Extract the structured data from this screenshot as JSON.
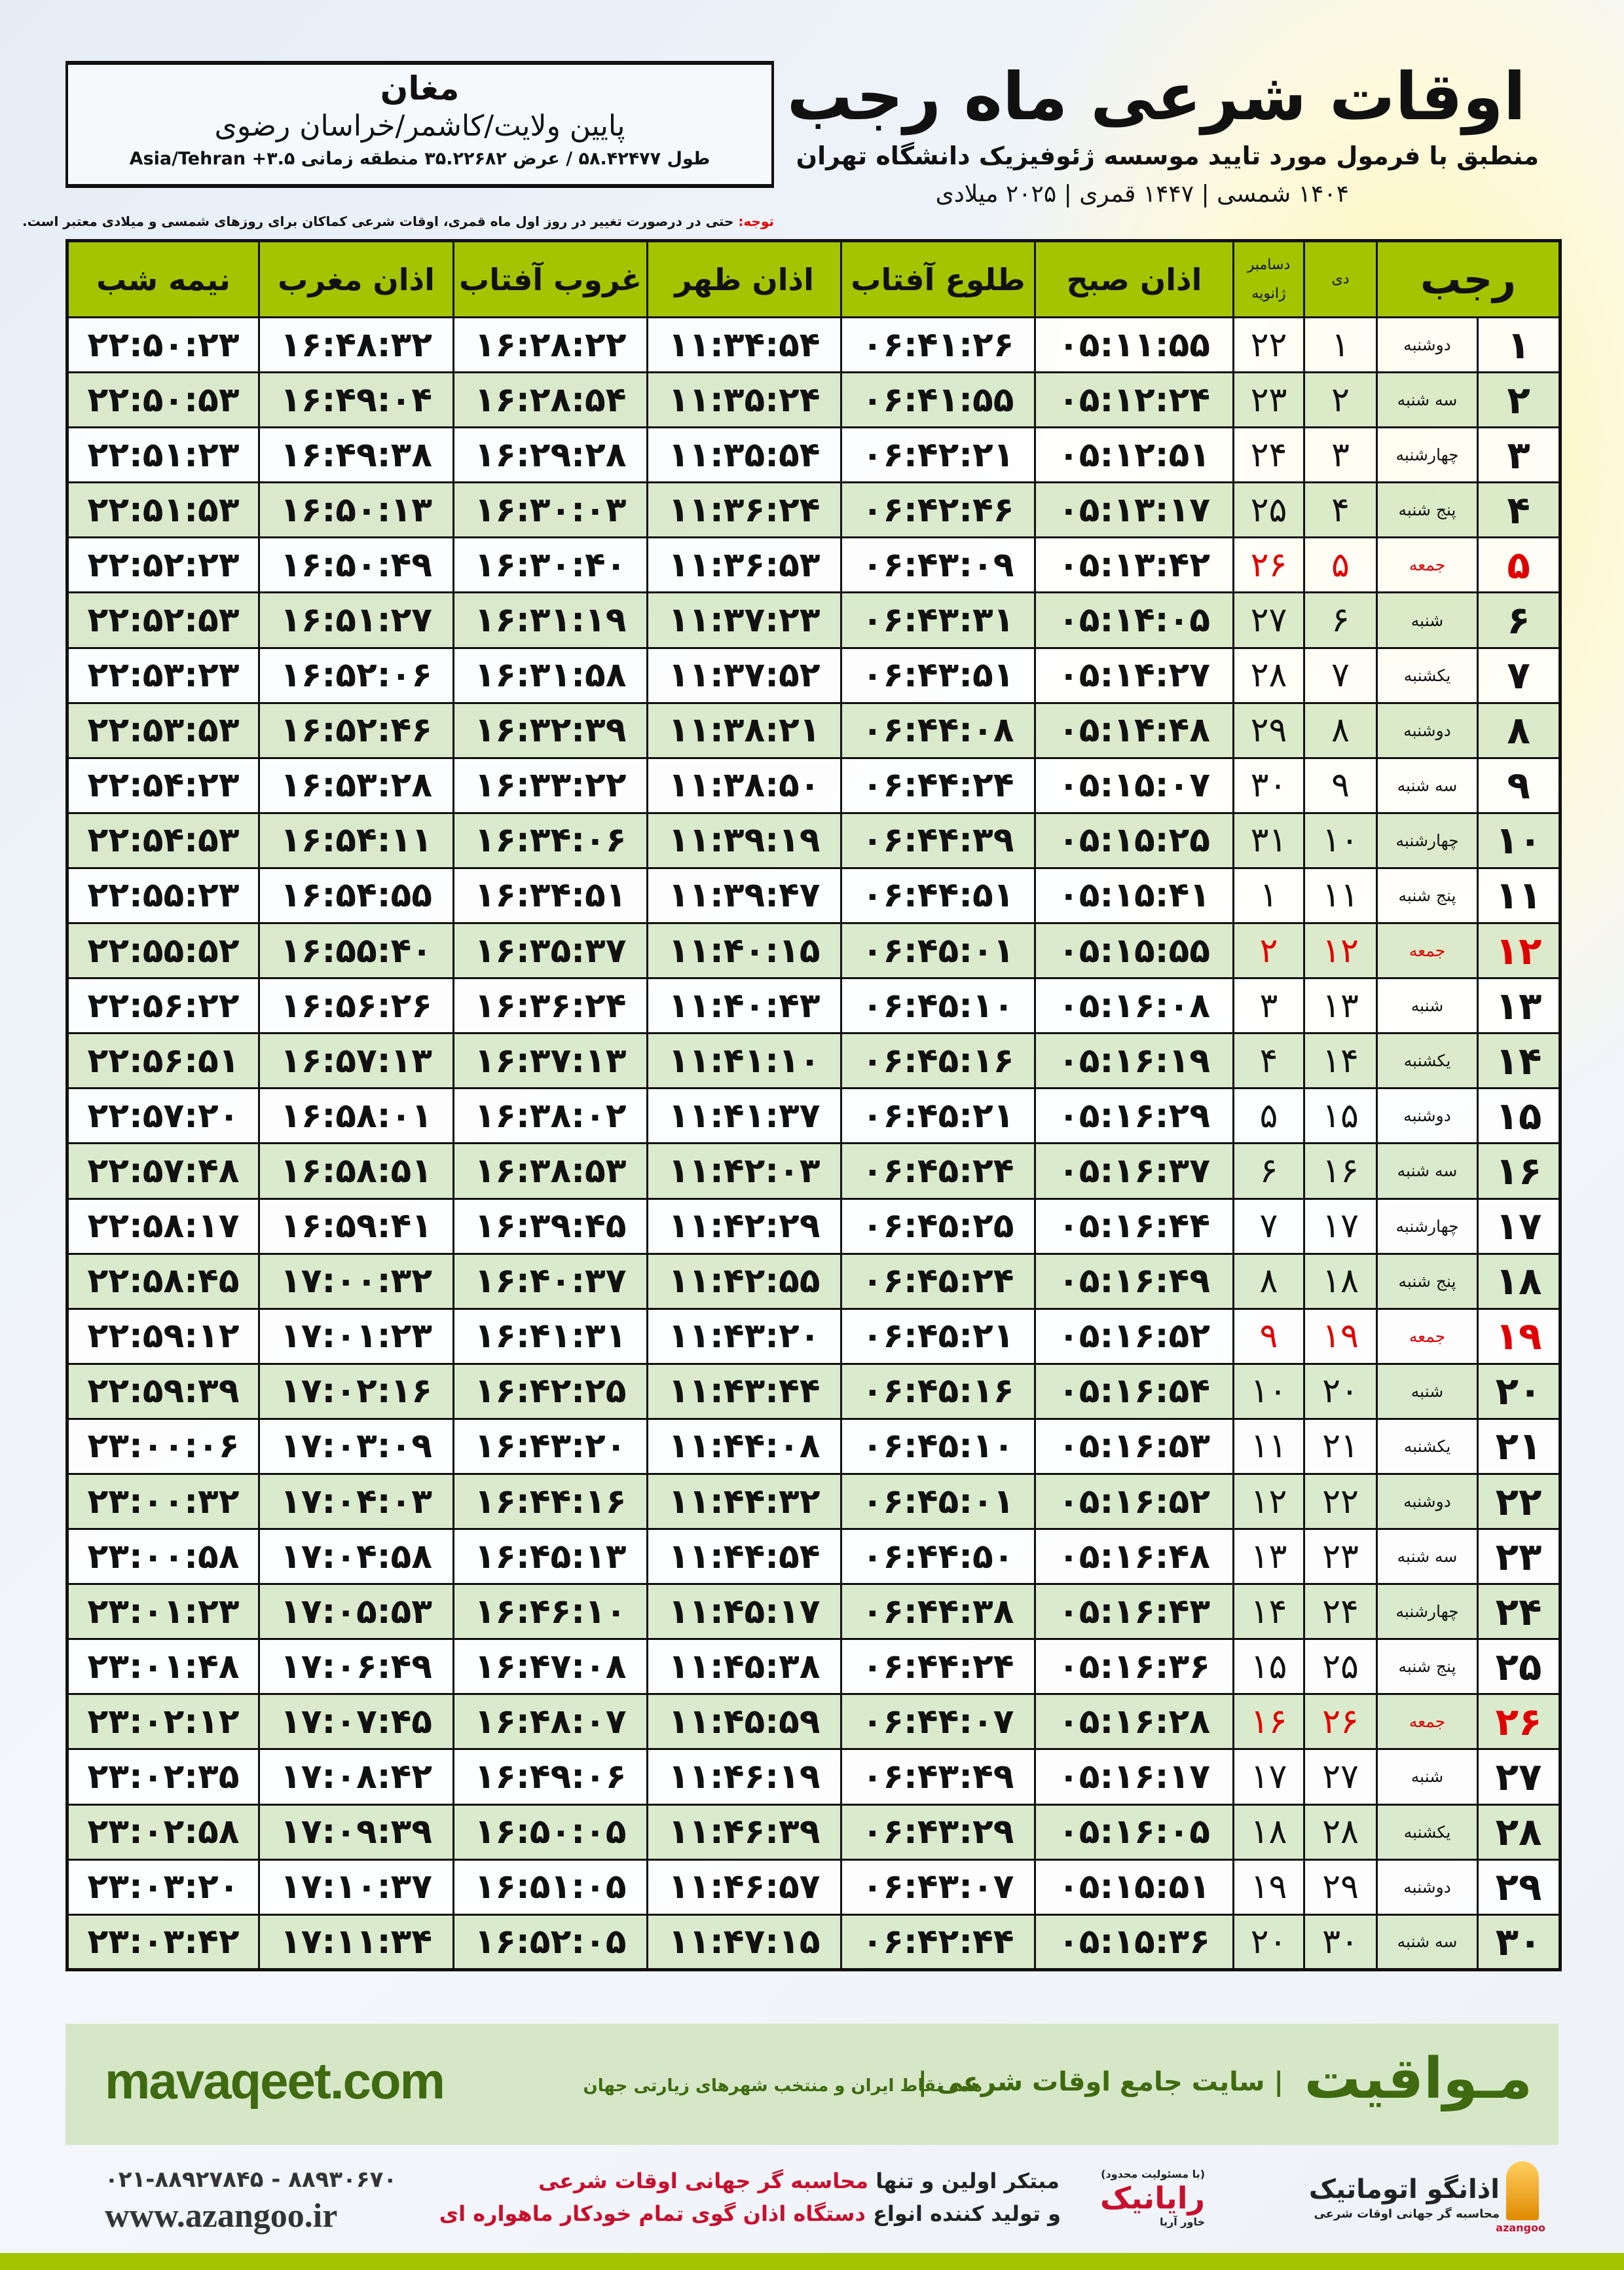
{
  "header": {
    "title": "اوقات شرعی ماه رجب",
    "subtitle": "منطبق با فرمول مورد تایید موسسه ژئوفیزیک دانشگاه تهران",
    "dates": "۱۴۰۴ شمسی | ۱۴۴۷ قمری | ۲۰۲۵ میلادی"
  },
  "location": {
    "city": "مغان",
    "province": "پایین ولایت/کاشمر/خراسان رضوی",
    "coords": "طول ۵۸.۴۲۴۷۷ / عرض ۳۵.۲۲۶۸۲ منطقه زمانی ۳.۵+ Asia/Tehran"
  },
  "note": {
    "label": "توجه:",
    "text": " حتی در درصورت تغییر در روز اول ماه قمری، اوقات شرعی کماکان برای روزهای شمسی و میلادی معتبر است."
  },
  "table": {
    "headers": {
      "rajab": "رجب",
      "dey": "دی",
      "gregorian_top": "دسامبر",
      "gregorian_bottom": "ژانویه",
      "fajr": "اذان صبح",
      "sunrise": "طلوع آفتاب",
      "dhuhr": "اذان ظهر",
      "sunset": "غروب آفتاب",
      "maghrib": "اذان مغرب",
      "midnight": "نیمه شب"
    },
    "friday_color": "#e00000",
    "header_color": "#a5c400",
    "rows": [
      [
        "۱",
        "دوشنبه",
        "۱",
        "۲۲",
        "۰۵:۱۱:۵۵",
        "۰۶:۴۱:۲۶",
        "۱۱:۳۴:۵۴",
        "۱۶:۲۸:۲۲",
        "۱۶:۴۸:۳۲",
        "۲۲:۵۰:۲۳"
      ],
      [
        "۲",
        "سه شنبه",
        "۲",
        "۲۳",
        "۰۵:۱۲:۲۴",
        "۰۶:۴۱:۵۵",
        "۱۱:۳۵:۲۴",
        "۱۶:۲۸:۵۴",
        "۱۶:۴۹:۰۴",
        "۲۲:۵۰:۵۳"
      ],
      [
        "۳",
        "چهارشنبه",
        "۳",
        "۲۴",
        "۰۵:۱۲:۵۱",
        "۰۶:۴۲:۲۱",
        "۱۱:۳۵:۵۴",
        "۱۶:۲۹:۲۸",
        "۱۶:۴۹:۳۸",
        "۲۲:۵۱:۲۳"
      ],
      [
        "۴",
        "پنج شنبه",
        "۴",
        "۲۵",
        "۰۵:۱۳:۱۷",
        "۰۶:۴۲:۴۶",
        "۱۱:۳۶:۲۴",
        "۱۶:۳۰:۰۳",
        "۱۶:۵۰:۱۳",
        "۲۲:۵۱:۵۳"
      ],
      [
        "۵",
        "جمعه",
        "۵",
        "۲۶",
        "۰۵:۱۳:۴۲",
        "۰۶:۴۳:۰۹",
        "۱۱:۳۶:۵۳",
        "۱۶:۳۰:۴۰",
        "۱۶:۵۰:۴۹",
        "۲۲:۵۲:۲۳"
      ],
      [
        "۶",
        "شنبه",
        "۶",
        "۲۷",
        "۰۵:۱۴:۰۵",
        "۰۶:۴۳:۳۱",
        "۱۱:۳۷:۲۳",
        "۱۶:۳۱:۱۹",
        "۱۶:۵۱:۲۷",
        "۲۲:۵۲:۵۳"
      ],
      [
        "۷",
        "یکشنبه",
        "۷",
        "۲۸",
        "۰۵:۱۴:۲۷",
        "۰۶:۴۳:۵۱",
        "۱۱:۳۷:۵۲",
        "۱۶:۳۱:۵۸",
        "۱۶:۵۲:۰۶",
        "۲۲:۵۳:۲۳"
      ],
      [
        "۸",
        "دوشنبه",
        "۸",
        "۲۹",
        "۰۵:۱۴:۴۸",
        "۰۶:۴۴:۰۸",
        "۱۱:۳۸:۲۱",
        "۱۶:۳۲:۳۹",
        "۱۶:۵۲:۴۶",
        "۲۲:۵۳:۵۳"
      ],
      [
        "۹",
        "سه شنبه",
        "۹",
        "۳۰",
        "۰۵:۱۵:۰۷",
        "۰۶:۴۴:۲۴",
        "۱۱:۳۸:۵۰",
        "۱۶:۳۳:۲۲",
        "۱۶:۵۳:۲۸",
        "۲۲:۵۴:۲۳"
      ],
      [
        "۱۰",
        "چهارشنبه",
        "۱۰",
        "۳۱",
        "۰۵:۱۵:۲۵",
        "۰۶:۴۴:۳۹",
        "۱۱:۳۹:۱۹",
        "۱۶:۳۴:۰۶",
        "۱۶:۵۴:۱۱",
        "۲۲:۵۴:۵۳"
      ],
      [
        "۱۱",
        "پنج شنبه",
        "۱۱",
        "۱",
        "۰۵:۱۵:۴۱",
        "۰۶:۴۴:۵۱",
        "۱۱:۳۹:۴۷",
        "۱۶:۳۴:۵۱",
        "۱۶:۵۴:۵۵",
        "۲۲:۵۵:۲۳"
      ],
      [
        "۱۲",
        "جمعه",
        "۱۲",
        "۲",
        "۰۵:۱۵:۵۵",
        "۰۶:۴۵:۰۱",
        "۱۱:۴۰:۱۵",
        "۱۶:۳۵:۳۷",
        "۱۶:۵۵:۴۰",
        "۲۲:۵۵:۵۲"
      ],
      [
        "۱۳",
        "شنبه",
        "۱۳",
        "۳",
        "۰۵:۱۶:۰۸",
        "۰۶:۴۵:۱۰",
        "۱۱:۴۰:۴۳",
        "۱۶:۳۶:۲۴",
        "۱۶:۵۶:۲۶",
        "۲۲:۵۶:۲۲"
      ],
      [
        "۱۴",
        "یکشنبه",
        "۱۴",
        "۴",
        "۰۵:۱۶:۱۹",
        "۰۶:۴۵:۱۶",
        "۱۱:۴۱:۱۰",
        "۱۶:۳۷:۱۳",
        "۱۶:۵۷:۱۳",
        "۲۲:۵۶:۵۱"
      ],
      [
        "۱۵",
        "دوشنبه",
        "۱۵",
        "۵",
        "۰۵:۱۶:۲۹",
        "۰۶:۴۵:۲۱",
        "۱۱:۴۱:۳۷",
        "۱۶:۳۸:۰۲",
        "۱۶:۵۸:۰۱",
        "۲۲:۵۷:۲۰"
      ],
      [
        "۱۶",
        "سه شنبه",
        "۱۶",
        "۶",
        "۰۵:۱۶:۳۷",
        "۰۶:۴۵:۲۴",
        "۱۱:۴۲:۰۳",
        "۱۶:۳۸:۵۳",
        "۱۶:۵۸:۵۱",
        "۲۲:۵۷:۴۸"
      ],
      [
        "۱۷",
        "چهارشنبه",
        "۱۷",
        "۷",
        "۰۵:۱۶:۴۴",
        "۰۶:۴۵:۲۵",
        "۱۱:۴۲:۲۹",
        "۱۶:۳۹:۴۵",
        "۱۶:۵۹:۴۱",
        "۲۲:۵۸:۱۷"
      ],
      [
        "۱۸",
        "پنج شنبه",
        "۱۸",
        "۸",
        "۰۵:۱۶:۴۹",
        "۰۶:۴۵:۲۴",
        "۱۱:۴۲:۵۵",
        "۱۶:۴۰:۳۷",
        "۱۷:۰۰:۳۲",
        "۲۲:۵۸:۴۵"
      ],
      [
        "۱۹",
        "جمعه",
        "۱۹",
        "۹",
        "۰۵:۱۶:۵۲",
        "۰۶:۴۵:۲۱",
        "۱۱:۴۳:۲۰",
        "۱۶:۴۱:۳۱",
        "۱۷:۰۱:۲۳",
        "۲۲:۵۹:۱۲"
      ],
      [
        "۲۰",
        "شنبه",
        "۲۰",
        "۱۰",
        "۰۵:۱۶:۵۴",
        "۰۶:۴۵:۱۶",
        "۱۱:۴۳:۴۴",
        "۱۶:۴۲:۲۵",
        "۱۷:۰۲:۱۶",
        "۲۲:۵۹:۳۹"
      ],
      [
        "۲۱",
        "یکشنبه",
        "۲۱",
        "۱۱",
        "۰۵:۱۶:۵۳",
        "۰۶:۴۵:۱۰",
        "۱۱:۴۴:۰۸",
        "۱۶:۴۳:۲۰",
        "۱۷:۰۳:۰۹",
        "۲۳:۰۰:۰۶"
      ],
      [
        "۲۲",
        "دوشنبه",
        "۲۲",
        "۱۲",
        "۰۵:۱۶:۵۲",
        "۰۶:۴۵:۰۱",
        "۱۱:۴۴:۳۲",
        "۱۶:۴۴:۱۶",
        "۱۷:۰۴:۰۳",
        "۲۳:۰۰:۳۲"
      ],
      [
        "۲۳",
        "سه شنبه",
        "۲۳",
        "۱۳",
        "۰۵:۱۶:۴۸",
        "۰۶:۴۴:۵۰",
        "۱۱:۴۴:۵۴",
        "۱۶:۴۵:۱۳",
        "۱۷:۰۴:۵۸",
        "۲۳:۰۰:۵۸"
      ],
      [
        "۲۴",
        "چهارشنبه",
        "۲۴",
        "۱۴",
        "۰۵:۱۶:۴۳",
        "۰۶:۴۴:۳۸",
        "۱۱:۴۵:۱۷",
        "۱۶:۴۶:۱۰",
        "۱۷:۰۵:۵۳",
        "۲۳:۰۱:۲۳"
      ],
      [
        "۲۵",
        "پنج شنبه",
        "۲۵",
        "۱۵",
        "۰۵:۱۶:۳۶",
        "۰۶:۴۴:۲۴",
        "۱۱:۴۵:۳۸",
        "۱۶:۴۷:۰۸",
        "۱۷:۰۶:۴۹",
        "۲۳:۰۱:۴۸"
      ],
      [
        "۲۶",
        "جمعه",
        "۲۶",
        "۱۶",
        "۰۵:۱۶:۲۸",
        "۰۶:۴۴:۰۷",
        "۱۱:۴۵:۵۹",
        "۱۶:۴۸:۰۷",
        "۱۷:۰۷:۴۵",
        "۲۳:۰۲:۱۲"
      ],
      [
        "۲۷",
        "شنبه",
        "۲۷",
        "۱۷",
        "۰۵:۱۶:۱۷",
        "۰۶:۴۳:۴۹",
        "۱۱:۴۶:۱۹",
        "۱۶:۴۹:۰۶",
        "۱۷:۰۸:۴۲",
        "۲۳:۰۲:۳۵"
      ],
      [
        "۲۸",
        "یکشنبه",
        "۲۸",
        "۱۸",
        "۰۵:۱۶:۰۵",
        "۰۶:۴۳:۲۹",
        "۱۱:۴۶:۳۹",
        "۱۶:۵۰:۰۵",
        "۱۷:۰۹:۳۹",
        "۲۳:۰۲:۵۸"
      ],
      [
        "۲۹",
        "دوشنبه",
        "۲۹",
        "۱۹",
        "۰۵:۱۵:۵۱",
        "۰۶:۴۳:۰۷",
        "۱۱:۴۶:۵۷",
        "۱۶:۵۱:۰۵",
        "۱۷:۱۰:۳۷",
        "۲۳:۰۳:۲۰"
      ],
      [
        "۳۰",
        "سه شنبه",
        "۳۰",
        "۲۰",
        "۰۵:۱۵:۳۶",
        "۰۶:۴۲:۴۴",
        "۱۱:۴۷:۱۵",
        "۱۶:۵۲:۰۵",
        "۱۷:۱۱:۳۴",
        "۲۳:۰۳:۴۲"
      ]
    ]
  },
  "banner": {
    "brand": "مـواقیت",
    "slogan": "| سایت جامع اوقات شرعی |",
    "slogan2": "همه نقاط ایران و منتخب شهرهای زیارتی جهان",
    "site": "mavaqeet.com"
  },
  "ad": {
    "line1_a": "مبتکر اولین و تنها ",
    "line1_b": "محاسبه گر جهانی اوقات شرعی",
    "line2_a": "و تولید کننده انواع ",
    "line2_b": "دستگاه اذان گوی تمام خودکار ماهواره ای",
    "phone": "۰۲۱-۸۸۹۲۷۸۴۵ - ۸۸۹۳۰۶۷۰",
    "website": "www.azangoo.ir"
  },
  "logos": {
    "azangoo_name": "اذانگو اتوماتیک",
    "azangoo_tag": "محاسبه گر جهانی اوقات شرعی",
    "azangoo_latin": "azangoo",
    "rayanik": "رایانیک",
    "rayanik_sub": "خاور آریا",
    "rayanik_note": "(با مسئولیت محدود)"
  }
}
